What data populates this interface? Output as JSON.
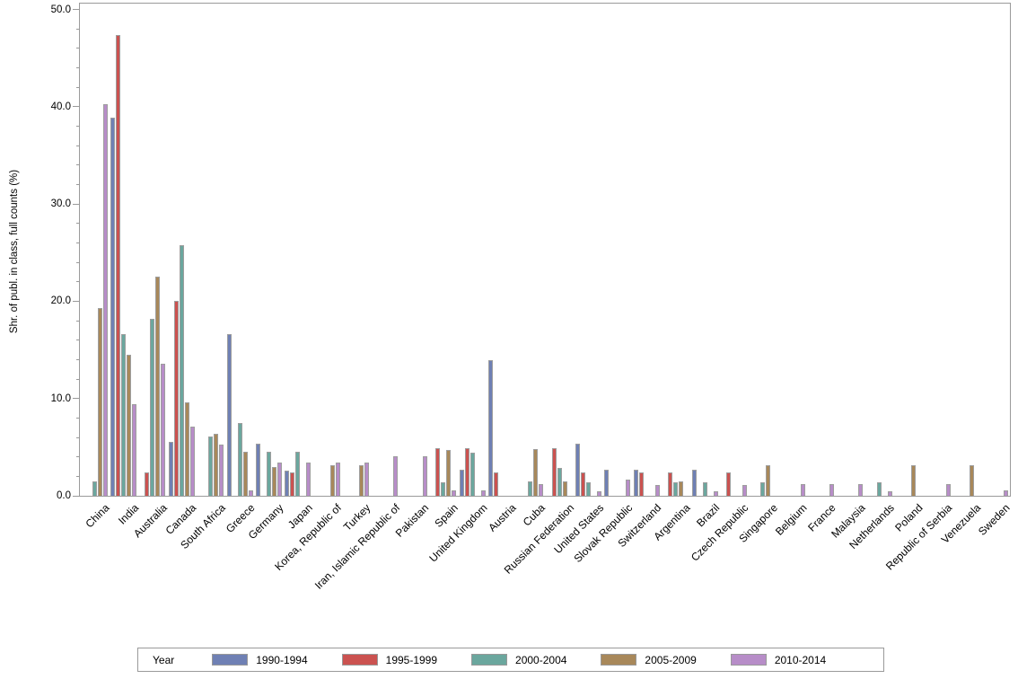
{
  "figure": {
    "background": "#ffffff",
    "frame_color": "#9a9a9a",
    "bar_border_color": "#9e9e9e"
  },
  "chart_data": {
    "type": "bar",
    "title": "",
    "xlabel": "",
    "ylabel": "Shr. of publ. in class, full counts (%)",
    "ylim": [
      0,
      50
    ],
    "ytick_major_step": 10,
    "ytick_minor_step": 2,
    "ytick_labels": [
      "0.0",
      "10.0",
      "20.0",
      "30.0",
      "40.0",
      "50.0"
    ],
    "grid": false,
    "legend_title": "Year",
    "legend_position": "bottom",
    "categories": [
      "China",
      "India",
      "Australia",
      "Canada",
      "South Africa",
      "Greece",
      "Germany",
      "Japan",
      "Korea, Republic of",
      "Turkey",
      "Iran, Islamic Republic of",
      "Pakistan",
      "Spain",
      "United Kingdom",
      "Austria",
      "Cuba",
      "Russian Federation",
      "United States",
      "Slovak Republic",
      "Switzerland",
      "Argentina",
      "Brazil",
      "Czech Republic",
      "Singapore",
      "Belgium",
      "France",
      "Malaysia",
      "Netherlands",
      "Poland",
      "Republic of Serbia",
      "Venezuela",
      "Sweden"
    ],
    "series": [
      {
        "name": "1990-1994",
        "color": "#6F80B4",
        "values": [
          0,
          38.9,
          0,
          5.5,
          0,
          16.6,
          5.4,
          2.6,
          0,
          0,
          0,
          0,
          0,
          2.7,
          13.9,
          0,
          0,
          5.4,
          2.7,
          2.7,
          0,
          2.7,
          0,
          0,
          0,
          0,
          0,
          0,
          0,
          0,
          0,
          0
        ]
      },
      {
        "name": "1995-1999",
        "color": "#CB5250",
        "values": [
          0,
          47.4,
          2.4,
          20.0,
          0,
          0,
          0,
          2.4,
          0,
          0,
          0,
          0,
          4.9,
          4.9,
          2.4,
          0,
          4.9,
          2.4,
          0,
          2.4,
          2.4,
          0,
          2.4,
          0,
          0,
          0,
          0,
          0,
          0,
          0,
          0,
          0
        ]
      },
      {
        "name": "2000-2004",
        "color": "#6BA79E",
        "values": [
          1.5,
          16.6,
          18.2,
          25.8,
          6.1,
          7.5,
          4.5,
          4.5,
          0,
          0,
          0,
          0,
          1.4,
          4.4,
          0,
          1.5,
          2.9,
          1.4,
          0,
          0,
          1.4,
          1.4,
          0,
          1.4,
          0,
          0,
          0,
          1.4,
          0,
          0,
          0,
          0
        ]
      },
      {
        "name": "2005-2009",
        "color": "#A8885A",
        "values": [
          19.3,
          14.5,
          22.5,
          9.6,
          6.4,
          4.5,
          3.0,
          0,
          3.1,
          3.1,
          0,
          0,
          4.7,
          0,
          0,
          4.8,
          1.5,
          0,
          0,
          0,
          1.5,
          0,
          0,
          3.1,
          0,
          0,
          0,
          0,
          3.1,
          0,
          3.1,
          0
        ]
      },
      {
        "name": "2010-2014",
        "color": "#B78DC8",
        "values": [
          40.3,
          9.4,
          13.6,
          7.1,
          5.3,
          0.6,
          3.4,
          3.4,
          3.4,
          3.4,
          4.1,
          4.1,
          0.6,
          0.6,
          0,
          1.2,
          0,
          0.5,
          1.7,
          1.1,
          0,
          0.5,
          1.1,
          0,
          1.2,
          1.2,
          1.2,
          0.5,
          0,
          1.2,
          0,
          0.6
        ]
      }
    ]
  }
}
